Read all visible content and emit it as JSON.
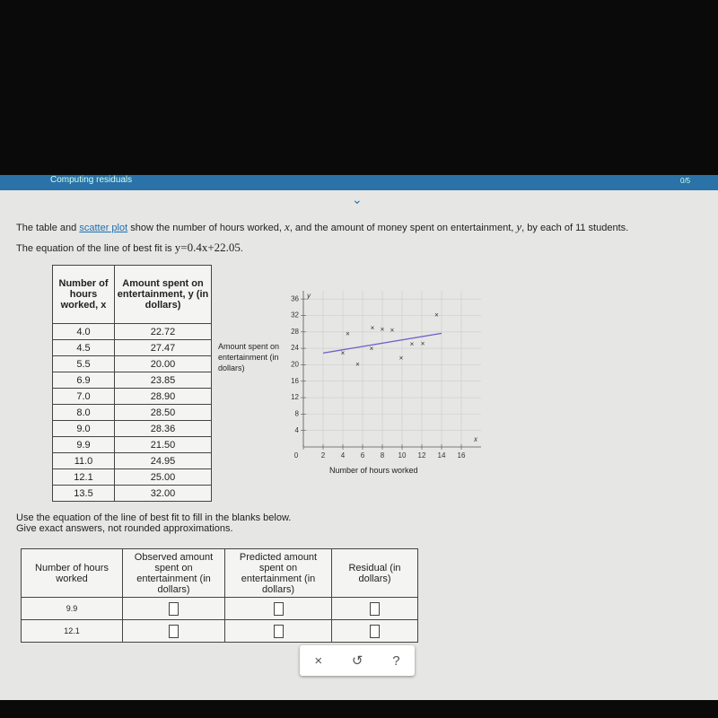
{
  "header": {
    "title": "Computing residuals",
    "progress": "0/5"
  },
  "intro": [
    "The table and ",
    "scatter plot",
    " show the number of hours worked, ",
    "x",
    ", and the amount of money spent on entertainment, ",
    "y",
    ", by each of 11 students."
  ],
  "equation": [
    "The equation of the line of best fit is ",
    "y=0.4x+22.05",
    "."
  ],
  "data_table": {
    "headers": [
      "Number of hours worked, x",
      "Amount spent on entertainment, y (in dollars)"
    ],
    "rows": [
      [
        "4.0",
        "22.72"
      ],
      [
        "4.5",
        "27.47"
      ],
      [
        "5.5",
        "20.00"
      ],
      [
        "6.9",
        "23.85"
      ],
      [
        "7.0",
        "28.90"
      ],
      [
        "8.0",
        "28.50"
      ],
      [
        "9.0",
        "28.36"
      ],
      [
        "9.9",
        "21.50"
      ],
      [
        "11.0",
        "24.95"
      ],
      [
        "12.1",
        "25.00"
      ],
      [
        "13.5",
        "32.00"
      ]
    ]
  },
  "chart_data": {
    "type": "scatter",
    "y_label": "Amount spent on entertainment (in dollars)",
    "x_label": "Number of hours worked",
    "x_symbol": "x",
    "y_symbol": "y",
    "marker": "×",
    "color": "#333333",
    "x": [
      4,
      4.5,
      5.5,
      6.9,
      7,
      8,
      9,
      9.9,
      11,
      12.1,
      13.5
    ],
    "values": [
      22.72,
      27.47,
      20,
      23.85,
      28.9,
      28.5,
      28.36,
      21.5,
      24.95,
      25,
      32
    ],
    "line": {
      "slope": 0.4,
      "intercept": 22.05,
      "color": "#6a5fc9"
    },
    "xlim": [
      0,
      18
    ],
    "ylim": [
      0,
      38
    ],
    "xticks": [
      0,
      2,
      4,
      6,
      8,
      10,
      12,
      14,
      16
    ],
    "yticks": [
      4,
      8,
      12,
      16,
      20,
      24,
      28,
      32,
      36
    ],
    "grid": true
  },
  "instructions": [
    "Use the equation of the line of best fit to fill in the blanks below.",
    "Give exact answers, not rounded approximations."
  ],
  "answer_table": {
    "headers": [
      "Number of hours worked",
      "Observed amount spent on entertainment (in dollars)",
      "Predicted amount spent on entertainment (in dollars)",
      "Residual (in dollars)"
    ],
    "rows": [
      [
        "9.9"
      ],
      [
        "12.1"
      ]
    ]
  },
  "buttons": [
    "×",
    "↺",
    "?"
  ]
}
